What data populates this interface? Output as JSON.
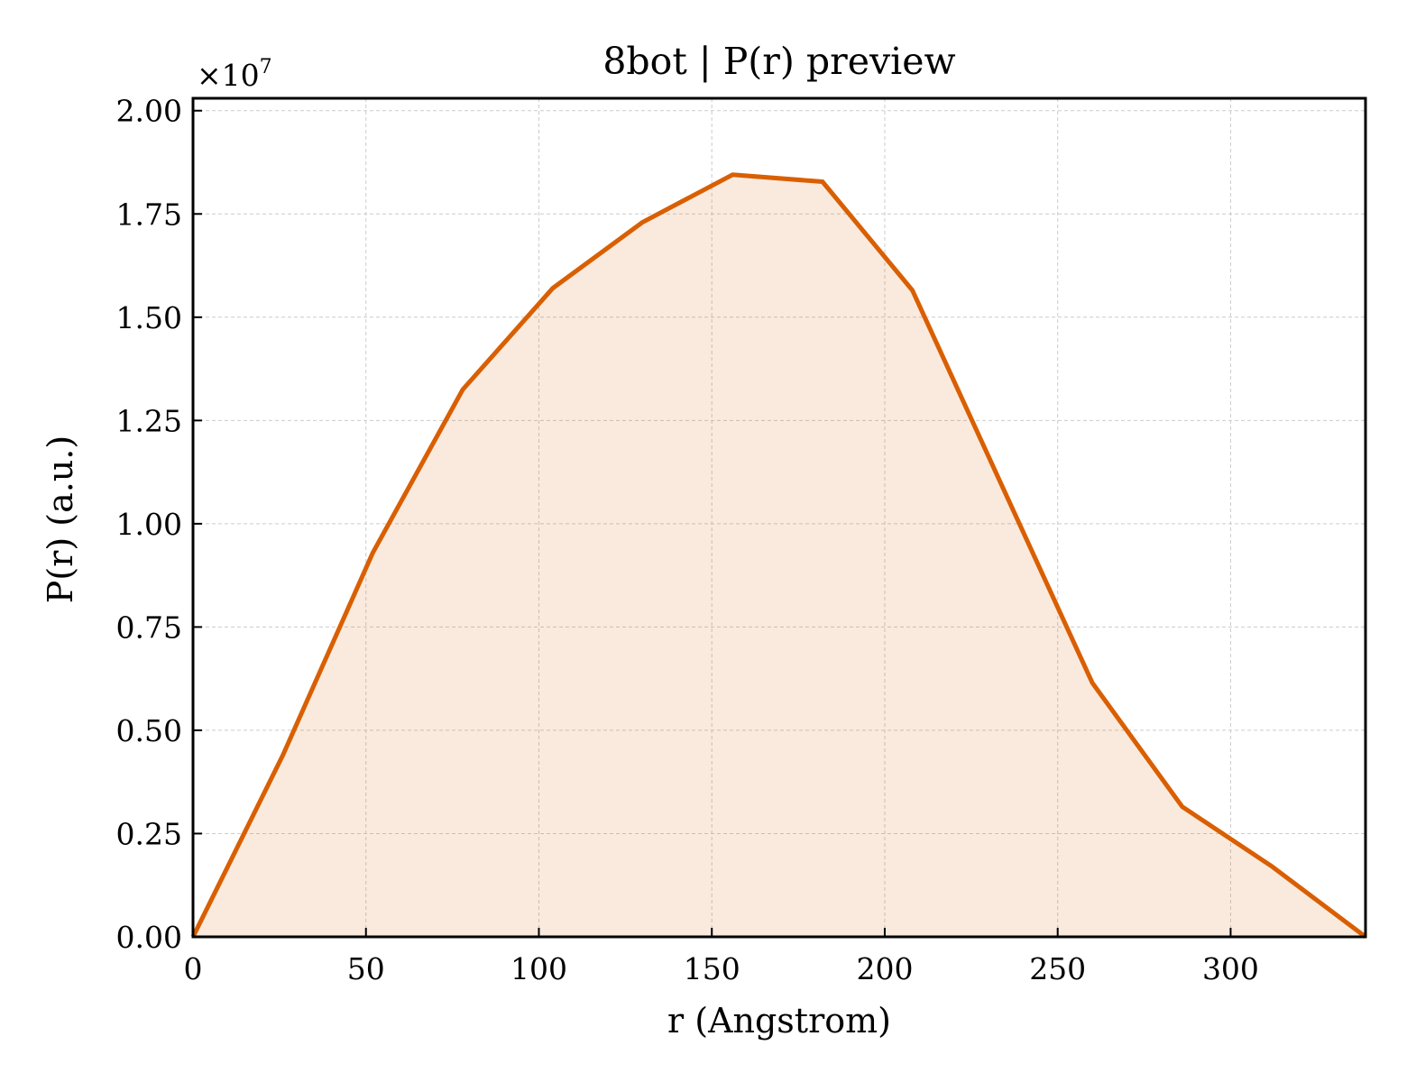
{
  "chart_data": {
    "type": "area",
    "title": "8bot | P(r) preview",
    "xlabel": "r (Angstrom)",
    "ylabel": "P(r) (a.u.)",
    "y_offset_label": "×10",
    "y_offset_exponent": "7",
    "xlim": [
      0,
      339
    ],
    "ylim": [
      0,
      2.03
    ],
    "x_ticks": [
      0,
      50,
      100,
      150,
      200,
      250,
      300
    ],
    "x_tick_labels": [
      "0",
      "50",
      "100",
      "150",
      "200",
      "250",
      "300"
    ],
    "y_ticks": [
      0,
      0.25,
      0.5,
      0.75,
      1.0,
      1.25,
      1.5,
      1.75,
      2.0
    ],
    "y_tick_labels": [
      "0.00",
      "0.25",
      "0.50",
      "0.75",
      "1.00",
      "1.25",
      "1.50",
      "1.75",
      "2.00"
    ],
    "grid": true,
    "series": [
      {
        "x": [
          0,
          26,
          52,
          78,
          104,
          130,
          156,
          182,
          208,
          234,
          260,
          286,
          312,
          339
        ],
        "y": [
          0.0,
          0.44,
          0.93,
          1.325,
          1.57,
          1.73,
          1.845,
          1.828,
          1.565,
          1.09,
          0.615,
          0.315,
          0.17,
          0.0
        ]
      }
    ],
    "colors": {
      "line": "#d95f02",
      "fill": "#d95f02",
      "grid": "#cccccc"
    }
  }
}
